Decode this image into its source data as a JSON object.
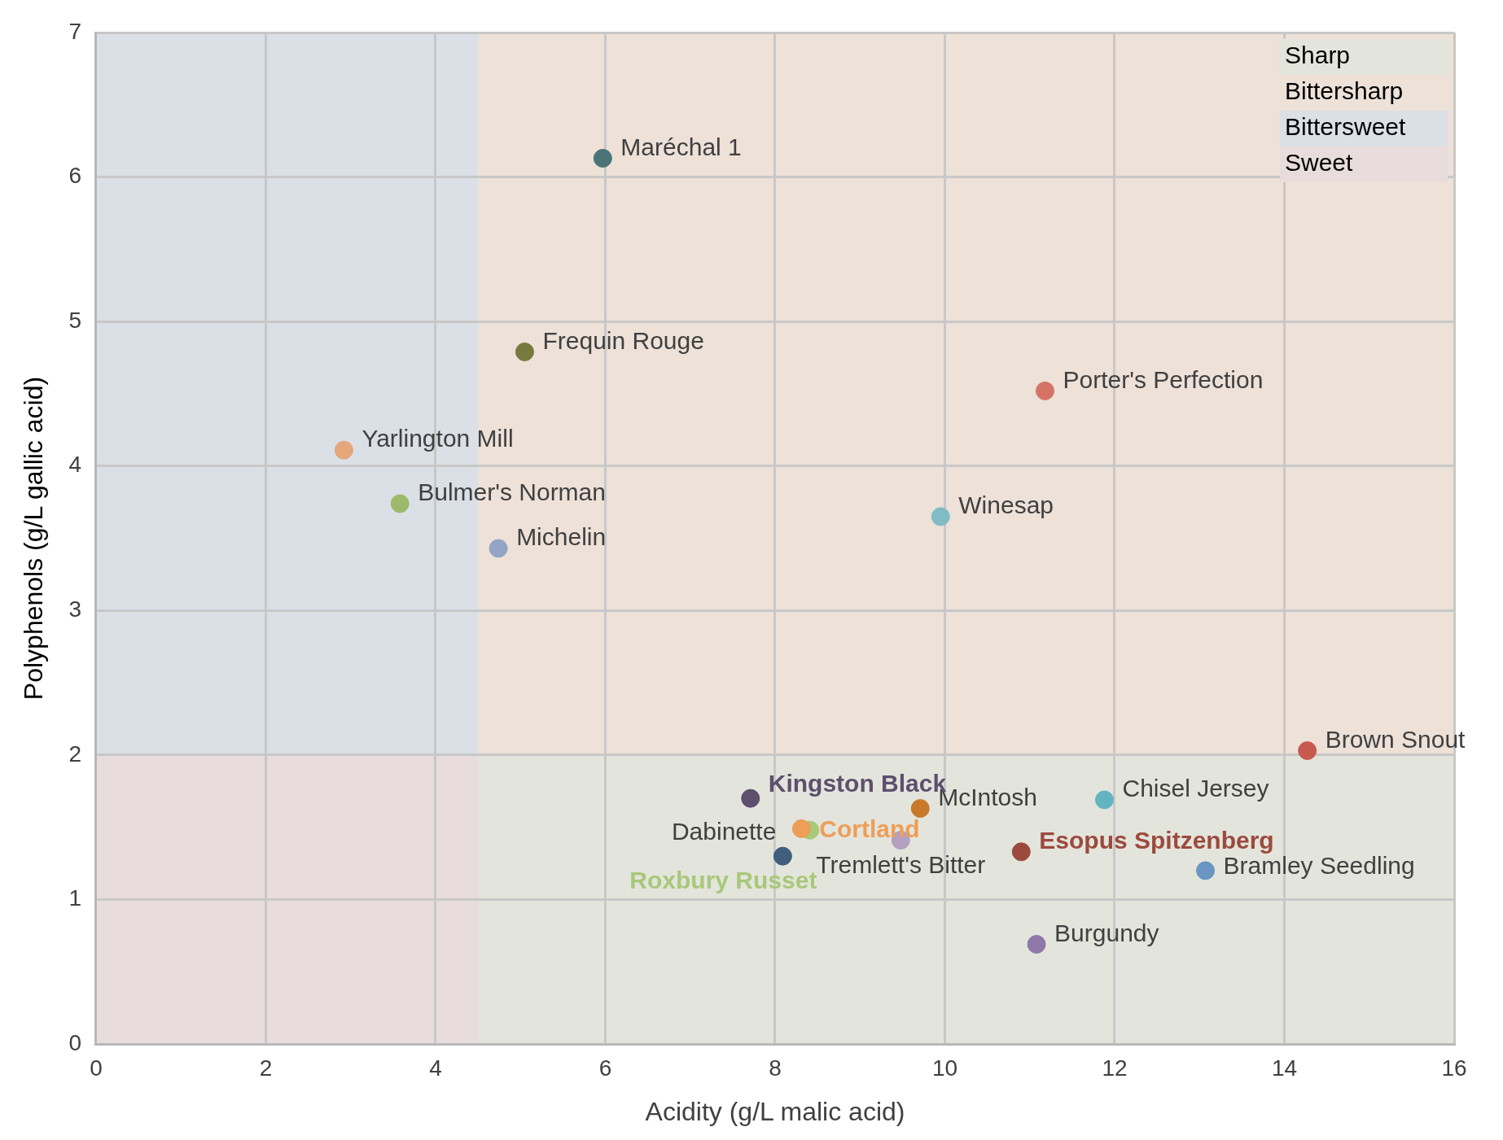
{
  "chart_data": {
    "type": "scatter",
    "xlabel": "Acidity (g/L malic acid)",
    "ylabel": "Polyphenols (g/L gallic acid)",
    "xlim": [
      0,
      16
    ],
    "xticks": [
      0,
      2,
      4,
      6,
      8,
      10,
      12,
      14,
      16
    ],
    "ylim": [
      0,
      7
    ],
    "yticks": [
      0,
      1,
      2,
      3,
      4,
      5,
      6,
      7
    ],
    "grid": true,
    "legend": "top right",
    "marker": "circle",
    "series": [
      {
        "name": "Sharp",
        "type": "area",
        "marker": "none",
        "color": "#e3e5dc",
        "x": [
          4.5,
          16
        ],
        "values": [
          2,
          2
        ]
      },
      {
        "name": "Bittersharp",
        "type": "area",
        "marker": "none",
        "color": "#ede1d8",
        "x": [
          4.5,
          16
        ],
        "values": [
          7,
          7
        ]
      },
      {
        "name": "Bittersweet",
        "type": "area",
        "marker": "none",
        "color": "#dbdfe6",
        "x": [
          0,
          4.5
        ],
        "values": [
          7,
          7
        ]
      },
      {
        "name": "Sweet",
        "type": "area",
        "marker": "none",
        "color": "#e8dcdc",
        "x": [
          0,
          4.5
        ],
        "values": [
          2,
          2
        ]
      },
      {
        "name": "Maréchal 1",
        "color": "#4a7478",
        "x": [
          5.97
        ],
        "values": [
          6.13
        ]
      },
      {
        "name": "Frequin Rouge",
        "color": "#767a3e",
        "x": [
          5.05
        ],
        "values": [
          4.79
        ]
      },
      {
        "name": "Porter's Perfection",
        "color": "#d67367",
        "x": [
          11.18
        ],
        "values": [
          4.52
        ]
      },
      {
        "name": "Yarlington Mill",
        "color": "#e5a67a",
        "x": [
          2.92
        ],
        "values": [
          4.11
        ]
      },
      {
        "name": "Bulmer's Norman",
        "color": "#9bbb6a",
        "x": [
          3.58
        ],
        "values": [
          3.74
        ]
      },
      {
        "name": "Michelin",
        "color": "#93a5c6",
        "x": [
          4.74
        ],
        "values": [
          3.43
        ]
      },
      {
        "name": "Winesap",
        "color": "#80bcc6",
        "x": [
          9.95
        ],
        "values": [
          3.65
        ]
      },
      {
        "name": "Brown Snout",
        "color": "#c8594f",
        "x": [
          14.27
        ],
        "values": [
          2.03
        ]
      },
      {
        "name": "Kingston Black",
        "color": "#5e4f6e",
        "x": [
          7.71
        ],
        "values": [
          1.7
        ]
      },
      {
        "name": "McIntosh",
        "color": "#c87a2a",
        "x": [
          9.71
        ],
        "values": [
          1.63
        ]
      },
      {
        "name": "Chisel Jersey",
        "color": "#63b4c0",
        "x": [
          11.88
        ],
        "values": [
          1.69
        ]
      },
      {
        "name": "Cortland",
        "color": "#ed9e58",
        "x": [
          8.31
        ],
        "values": [
          1.49
        ]
      },
      {
        "name": "Roxbury Russet",
        "color": "#a8c87a",
        "x": [
          8.41
        ],
        "values": [
          1.48
        ]
      },
      {
        "name": "Tremlett's Bitter",
        "color": "#b4a0c0",
        "x": [
          9.48
        ],
        "values": [
          1.41
        ]
      },
      {
        "name": "Dabinette",
        "color": "#3f5f7c",
        "x": [
          8.09
        ],
        "values": [
          1.3
        ]
      },
      {
        "name": "Esopus Spitzenberg",
        "color": "#9c4a3e",
        "x": [
          10.9
        ],
        "values": [
          1.33
        ]
      },
      {
        "name": "Bramley Seedling",
        "color": "#6a94c2",
        "x": [
          13.07
        ],
        "values": [
          1.2
        ]
      },
      {
        "name": "Burgundy",
        "color": "#8f78a8",
        "x": [
          11.08
        ],
        "values": [
          0.69
        ]
      }
    ]
  }
}
